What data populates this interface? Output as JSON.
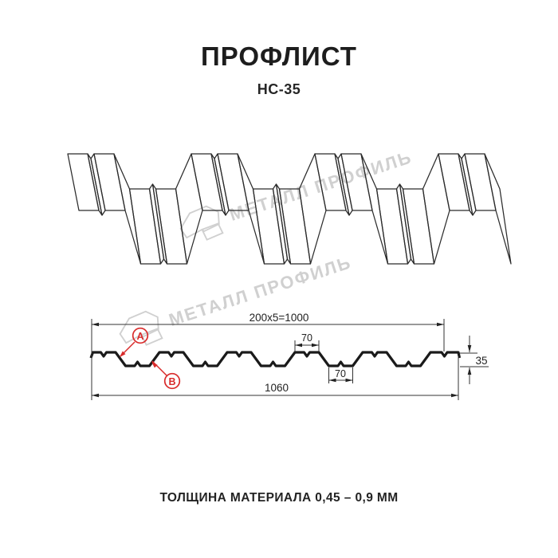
{
  "header": {
    "title": "ПРОФЛИСТ",
    "subtitle": "НС-35"
  },
  "watermark": {
    "text": "МЕТАЛЛ ПРОФИЛЬ",
    "color": "#d0d0d0"
  },
  "diagram": {
    "dims": {
      "coverage": "200x5=1000",
      "rib_top": "70",
      "rib_bottom": "70",
      "full_width": "1060",
      "height": "35"
    },
    "markers": {
      "a": "A",
      "b": "B"
    },
    "marker_color": "#d92b2b",
    "line_color": "#1a1a1a"
  },
  "footer": {
    "text": "ТОЛЩИНА МАТЕРИАЛА 0,45 – 0,9 ММ"
  }
}
